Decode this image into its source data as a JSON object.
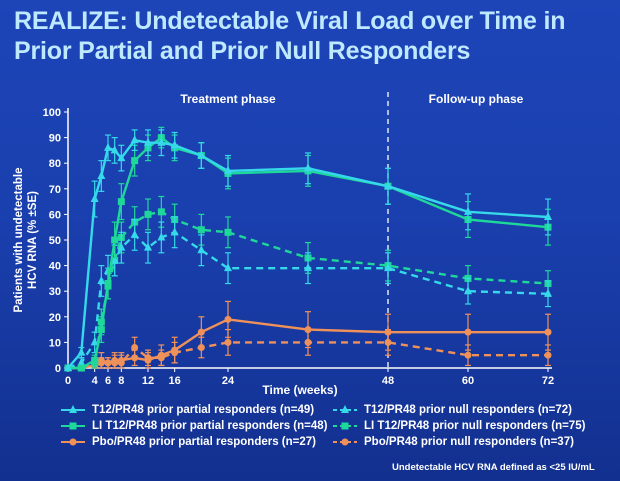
{
  "title": {
    "line1": "REALIZE: Undetectable Viral Load over Time in",
    "line2": "Prior Partial and Prior Null Responders"
  },
  "footnote": "Undetectable HCV RNA defined as <25 IU/mL",
  "colors": {
    "background": "#1a3fae",
    "title": "#bfe9ff",
    "t12": "#35d9ea",
    "li_t12": "#1ed89a",
    "pbo": "#f0915a",
    "axis": "#ffffff"
  },
  "chart_data": {
    "type": "line",
    "title": "",
    "xlabel": "Time (weeks)",
    "ylabel": "Patients with undetectable HCV RNA (% ±SE)",
    "xlim": [
      0,
      72
    ],
    "ylim": [
      0,
      100
    ],
    "xticks": [
      0,
      4,
      6,
      8,
      12,
      16,
      24,
      48,
      60,
      72
    ],
    "xtick_labels": [
      "0",
      "4",
      "6",
      "8",
      "12",
      "16",
      "24",
      "48",
      "60",
      "72"
    ],
    "yticks": [
      0,
      10,
      20,
      30,
      40,
      50,
      60,
      70,
      80,
      90,
      100
    ],
    "ytick_labels": [
      "0",
      "10",
      "20",
      "30",
      "40",
      "50",
      "60",
      "70",
      "80",
      "90",
      "100"
    ],
    "phase_divider_x": 48,
    "phase_labels": [
      "Treatment phase",
      "Follow-up phase"
    ],
    "grid": false,
    "legend_position": "bottom",
    "x": [
      0,
      2,
      4,
      5,
      6,
      7,
      8,
      10,
      12,
      14,
      16,
      20,
      24,
      36,
      48,
      60,
      72
    ],
    "series": [
      {
        "name": "T12/PR48 prior partial responders (n=49)",
        "color": "#35d9ea",
        "marker": "triangle",
        "dash": false,
        "values": [
          0,
          6,
          66,
          75,
          86,
          85,
          82,
          89,
          88,
          88,
          87,
          83,
          77,
          78,
          71,
          61,
          59
        ],
        "errors": [
          0,
          2,
          7,
          6,
          5,
          5,
          5,
          4,
          5,
          5,
          5,
          5,
          6,
          6,
          7,
          7,
          7
        ]
      },
      {
        "name": "LI T12/PR48 prior partial responders (n=48)",
        "color": "#1ed89a",
        "marker": "square",
        "dash": false,
        "values": [
          0,
          0,
          3,
          15,
          33,
          50,
          65,
          81,
          86,
          90,
          86,
          83,
          76,
          77,
          71,
          58,
          55
        ],
        "errors": [
          0,
          0,
          2,
          5,
          6,
          7,
          7,
          6,
          5,
          4,
          5,
          5,
          6,
          6,
          7,
          7,
          7
        ]
      },
      {
        "name": "T12/PR48 prior null responders (n=72)",
        "color": "#35d9ea",
        "marker": "triangle",
        "dash": true,
        "values": [
          0,
          2,
          10,
          34,
          38,
          42,
          47,
          52,
          47,
          51,
          53,
          46,
          39,
          39,
          39,
          30,
          29
        ],
        "errors": [
          0,
          2,
          4,
          6,
          6,
          6,
          6,
          6,
          6,
          6,
          6,
          6,
          6,
          6,
          6,
          5,
          5
        ]
      },
      {
        "name": "LI T12/PR48 prior null responders (n=75)",
        "color": "#1ed89a",
        "marker": "square",
        "dash": true,
        "values": [
          0,
          0,
          2,
          18,
          32,
          42,
          51,
          57,
          60,
          61,
          58,
          54,
          53,
          43,
          40,
          35,
          33
        ],
        "errors": [
          0,
          0,
          2,
          5,
          5,
          6,
          6,
          6,
          6,
          6,
          6,
          6,
          6,
          6,
          6,
          5,
          5
        ]
      },
      {
        "name": "Pbo/PR48 prior partial responders (n=27)",
        "color": "#f0915a",
        "marker": "circle",
        "dash": false,
        "values": [
          0,
          0,
          1,
          2,
          2,
          3,
          3,
          4,
          3,
          5,
          7,
          14,
          19,
          15,
          14,
          14,
          14
        ],
        "errors": [
          0,
          0,
          1,
          2,
          2,
          3,
          3,
          3,
          3,
          4,
          5,
          6,
          7,
          7,
          7,
          7,
          7
        ]
      },
      {
        "name": "Pbo/PR48 prior null responders (n=37)",
        "color": "#f0915a",
        "marker": "circle",
        "dash": true,
        "values": [
          0,
          0,
          1,
          3,
          2,
          2,
          2,
          8,
          4,
          4,
          6,
          8,
          10,
          10,
          10,
          5,
          5
        ],
        "errors": [
          0,
          0,
          1,
          3,
          2,
          3,
          3,
          4,
          3,
          3,
          4,
          4,
          5,
          5,
          5,
          4,
          4
        ]
      }
    ]
  },
  "legend": {
    "rows": [
      [
        "T12/PR48 prior partial responders (n=49)",
        "T12/PR48 prior null responders (n=72)"
      ],
      [
        "LI T12/PR48 prior partial responders (n=48)",
        "LI T12/PR48 prior null responders (n=75)"
      ],
      [
        "Pbo/PR48 prior partial responders (n=27)",
        "Pbo/PR48 prior null responders (n=37)"
      ]
    ],
    "row_colors": [
      "#35d9ea",
      "#1ed89a",
      "#f0915a"
    ],
    "row_markers": [
      "triangle",
      "square",
      "circle"
    ]
  }
}
